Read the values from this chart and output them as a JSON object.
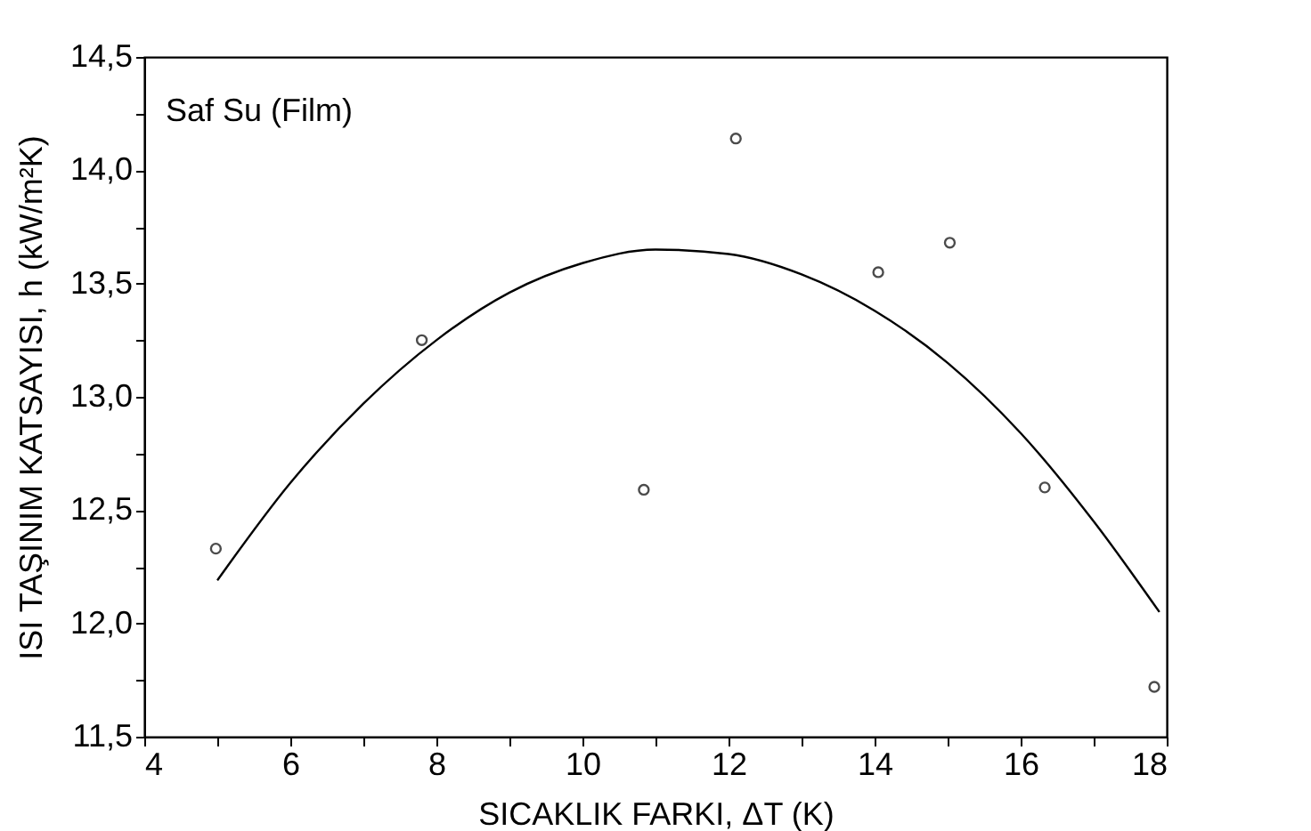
{
  "chart_data": {
    "type": "scatter",
    "xlabel": "SICAKLIK FARKI, ΔT (K)",
    "ylabel": "ISI TAŞINIM KATSAYISI, h (kW/m²K)",
    "annotations": [
      "Saf Su (Film)"
    ],
    "xlim": [
      4,
      18
    ],
    "xticks": [
      4,
      {
        "value": 5,
        "label": null
      },
      6,
      {
        "value": 7,
        "label": null
      },
      8,
      {
        "value": 9,
        "label": null
      },
      10,
      {
        "value": 11,
        "label": null
      },
      12,
      {
        "value": 13,
        "label": null
      },
      14,
      {
        "value": 15,
        "label": null
      },
      16,
      {
        "value": 17,
        "label": null
      },
      18
    ],
    "ylim": [
      11.5,
      14.5
    ],
    "yticks": [
      {
        "value": 11.5,
        "label": "11,5"
      },
      {
        "value": 11.75,
        "label": null
      },
      {
        "value": 12,
        "label": "12,0"
      },
      {
        "value": 12.25,
        "label": null
      },
      {
        "value": 12.5,
        "label": "12,5"
      },
      {
        "value": 12.75,
        "label": null
      },
      {
        "value": 13,
        "label": "13,0"
      },
      {
        "value": 13.25,
        "label": null
      },
      {
        "value": 13.5,
        "label": "13,5"
      },
      {
        "value": 13.75,
        "label": null
      },
      {
        "value": 14,
        "label": "14,0"
      },
      {
        "value": 14.25,
        "label": null
      },
      {
        "value": 14.5,
        "label": "14,5"
      }
    ],
    "grid": false,
    "series": [
      {
        "marker": "circle",
        "color": "#000000",
        "x": [
          4.98,
          7.8,
          10.84,
          12.1,
          14.05,
          15.03,
          16.33,
          17.83
        ],
        "values": [
          12.33,
          13.25,
          12.59,
          14.14,
          13.55,
          13.68,
          12.6,
          11.72
        ]
      },
      {
        "type": "line",
        "line_style": "solid",
        "color": "#000000",
        "x": [
          5,
          6,
          7,
          8,
          9,
          10,
          11,
          12,
          13,
          14,
          15,
          16,
          17,
          17.9
        ],
        "values": [
          12.19,
          12.62,
          12.97,
          13.25,
          13.46,
          13.59,
          13.65,
          13.63,
          13.54,
          13.38,
          13.15,
          12.84,
          12.45,
          12.05
        ]
      }
    ]
  }
}
